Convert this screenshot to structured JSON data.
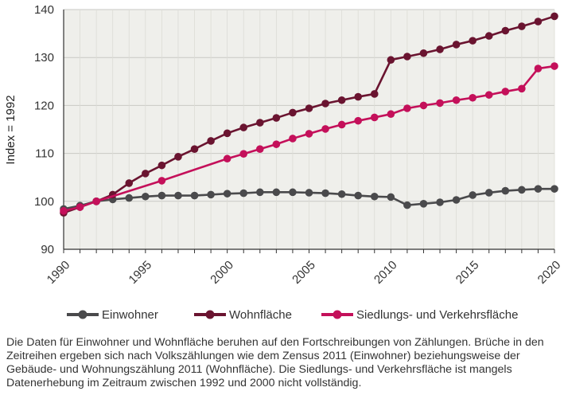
{
  "chart_data": {
    "type": "line",
    "title": "",
    "xlabel": "",
    "ylabel": "Index = 1992",
    "xlim": [
      1990,
      2020
    ],
    "ylim": [
      90,
      140
    ],
    "yticks": [
      90,
      100,
      110,
      120,
      130,
      140
    ],
    "xticks": [
      1990,
      1995,
      2000,
      2005,
      2010,
      2015,
      2020
    ],
    "grid": true,
    "legend_position": "bottom",
    "background_color": "#efefeb",
    "series": [
      {
        "name": "Einwohner",
        "color": "#4a4a4c",
        "x": [
          1990,
          1991,
          1992,
          1993,
          1994,
          1995,
          1996,
          1997,
          1998,
          1999,
          2000,
          2001,
          2002,
          2003,
          2004,
          2005,
          2006,
          2007,
          2008,
          2009,
          2010,
          2011,
          2012,
          2013,
          2014,
          2015,
          2016,
          2017,
          2018,
          2019,
          2020
        ],
        "values": [
          98.4,
          99.1,
          100.0,
          100.4,
          100.7,
          101.0,
          101.2,
          101.2,
          101.2,
          101.4,
          101.6,
          101.7,
          101.9,
          101.9,
          101.9,
          101.8,
          101.7,
          101.5,
          101.2,
          101.0,
          100.9,
          99.2,
          99.5,
          99.8,
          100.3,
          101.3,
          101.8,
          102.2,
          102.4,
          102.6,
          102.6
        ]
      },
      {
        "name": "Wohnfläche",
        "color": "#6a1430",
        "x": [
          1990,
          1991,
          1992,
          1993,
          1994,
          1995,
          1996,
          1997,
          1998,
          1999,
          2000,
          2001,
          2002,
          2003,
          2004,
          2005,
          2006,
          2007,
          2008,
          2009,
          2010,
          2011,
          2012,
          2013,
          2014,
          2015,
          2016,
          2017,
          2018,
          2019,
          2020
        ],
        "values": [
          97.6,
          98.8,
          100.0,
          101.4,
          103.8,
          105.8,
          107.5,
          109.3,
          110.9,
          112.6,
          114.2,
          115.4,
          116.4,
          117.4,
          118.5,
          119.4,
          120.4,
          121.1,
          121.8,
          122.4,
          129.5,
          130.2,
          130.9,
          131.7,
          132.7,
          133.5,
          134.5,
          135.6,
          136.5,
          137.5,
          138.6
        ]
      },
      {
        "name": "Siedlungs- und Verkehrsfläche",
        "color": "#c4105a",
        "x": [
          1990,
          1991,
          1992,
          1996,
          2000,
          2001,
          2002,
          2003,
          2004,
          2005,
          2006,
          2007,
          2008,
          2009,
          2010,
          2011,
          2012,
          2013,
          2014,
          2015,
          2016,
          2017,
          2018,
          2019,
          2020
        ],
        "values": [
          98.0,
          98.8,
          100.0,
          104.3,
          108.9,
          109.9,
          110.9,
          111.9,
          113.1,
          114.1,
          115.1,
          116.0,
          116.8,
          117.5,
          118.2,
          119.4,
          120.0,
          120.5,
          121.1,
          121.6,
          122.2,
          122.9,
          123.5,
          127.7,
          128.2
        ]
      }
    ]
  },
  "footnote": "Die Daten für Einwohner und Wohnfläche beruhen auf den Fortschreibungen von Zählungen. Brüche in den Zeitreihen ergeben sich nach Volkszählungen wie dem Zensus 2011 (Einwohner) beziehungsweise der Gebäude- und Wohnungszählung 2011 (Wohnfläche). Die Siedlungs- und Verkehrsfläche ist mangels Datenerhebung im Zeitraum zwischen 1992 und 2000 nicht vollständig."
}
